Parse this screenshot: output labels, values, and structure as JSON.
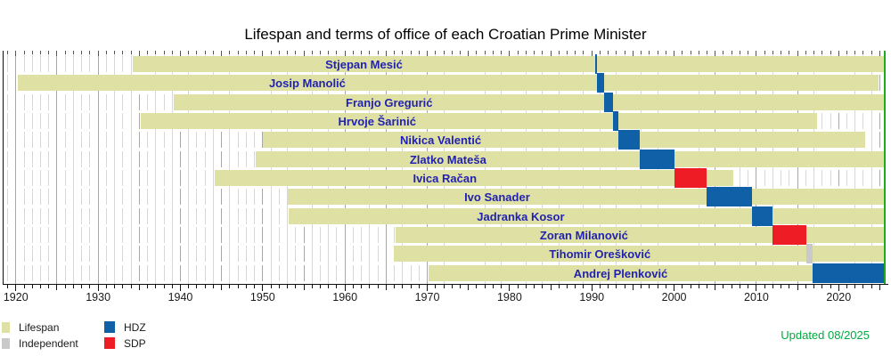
{
  "chart_data": {
    "type": "bar",
    "variant": "gantt-timeline",
    "title": "Lifespan and terms of office of each Croatian Prime Minister",
    "updated": "Updated 08/2025",
    "x_axis": {
      "min": 1918.4,
      "max": 2025.6,
      "minor_tick_interval": 1,
      "major_tick_interval": 5,
      "decade_labels": [
        "1920",
        "1930",
        "1940",
        "1950",
        "1960",
        "1970",
        "1980",
        "1990",
        "2000",
        "2010",
        "2020"
      ],
      "decade_values": [
        1920,
        1930,
        1940,
        1950,
        1960,
        1970,
        1980,
        1990,
        2000,
        2010,
        2020
      ]
    },
    "today_marker": 2025.6,
    "grid": true,
    "legend_position": "bottom-left",
    "legend": [
      {
        "label": "Lifespan",
        "color_key": "lifespan"
      },
      {
        "label": "Independent",
        "color_key": "independent"
      },
      {
        "label": "HDZ",
        "color_key": "HDZ"
      },
      {
        "label": "SDP",
        "color_key": "SDP"
      }
    ],
    "colors": {
      "lifespan": "#dfe1a4",
      "independent": "#c9c9c9",
      "HDZ": "#1060a8",
      "SDP": "#ee1c24",
      "name_text": "#2222b2",
      "axis": "#111111",
      "grid_minor": "#d8d8d8",
      "grid_major": "#a8a8a8",
      "tick": "#555555",
      "today_line": "#1aae1a",
      "updated_text": "#00ab41"
    },
    "prime_ministers": [
      {
        "name": "Stjepan Mesić",
        "lifespan": [
          1934.2,
          null
        ],
        "term": {
          "start": 1990.41,
          "end": 1990.65,
          "party": "HDZ"
        }
      },
      {
        "name": "Josip Manolić",
        "lifespan": [
          1920.2,
          2024.8
        ],
        "term": {
          "start": 1990.65,
          "end": 1991.54,
          "party": "HDZ"
        }
      },
      {
        "name": "Franjo Gregurić",
        "lifespan": [
          1939.2,
          null
        ],
        "term": {
          "start": 1991.54,
          "end": 1992.61,
          "party": "HDZ"
        }
      },
      {
        "name": "Hrvoje Šarinić",
        "lifespan": [
          1935.2,
          2017.4
        ],
        "term": {
          "start": 1992.61,
          "end": 1993.26,
          "party": "HDZ"
        }
      },
      {
        "name": "Nikica Valentić",
        "lifespan": [
          1950.0,
          2023.2
        ],
        "term": {
          "start": 1993.26,
          "end": 1995.85,
          "party": "HDZ"
        }
      },
      {
        "name": "Zlatko Mateša",
        "lifespan": [
          1949.2,
          null
        ],
        "term": {
          "start": 1995.85,
          "end": 2000.07,
          "party": "HDZ"
        }
      },
      {
        "name": "Ivica Račan",
        "lifespan": [
          1944.2,
          2007.2
        ],
        "term": {
          "start": 2000.07,
          "end": 2003.98,
          "party": "SDP"
        }
      },
      {
        "name": "Ivo Sanader",
        "lifespan": [
          1953.0,
          null
        ],
        "term": {
          "start": 2003.98,
          "end": 2009.51,
          "party": "HDZ"
        }
      },
      {
        "name": "Jadranka Kosor",
        "lifespan": [
          1953.2,
          null
        ],
        "term": {
          "start": 2009.51,
          "end": 2011.98,
          "party": "HDZ"
        }
      },
      {
        "name": "Zoran Milanović",
        "lifespan": [
          1966.1,
          null
        ],
        "term": {
          "start": 2011.98,
          "end": 2016.06,
          "party": "SDP"
        }
      },
      {
        "name": "Tihomir Orešković",
        "lifespan": [
          1965.9,
          null
        ],
        "term": {
          "start": 2016.06,
          "end": 2016.8,
          "party": "Independent"
        }
      },
      {
        "name": "Andrej Plenković",
        "lifespan": [
          1970.2,
          null
        ],
        "term": {
          "start": 2016.8,
          "end": null,
          "party": "HDZ"
        }
      }
    ]
  }
}
